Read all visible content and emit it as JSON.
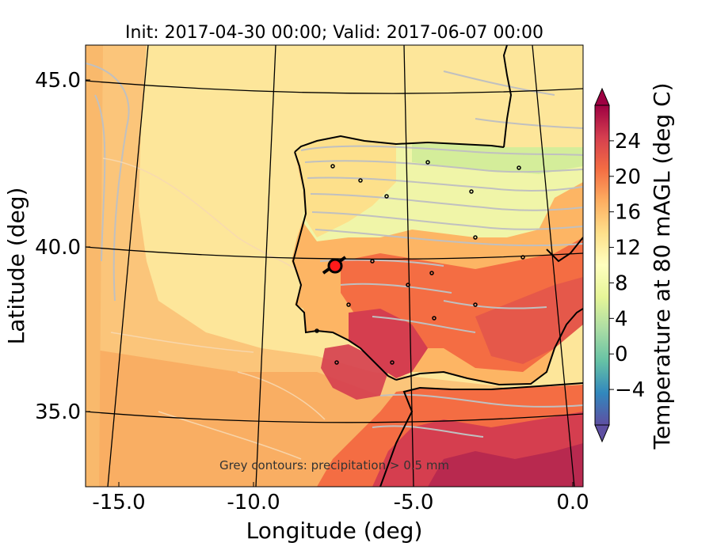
{
  "map": {
    "title": "Init: 2017-04-30 00:00; Valid: 2017-06-07 00:00",
    "xlabel": "Longitude (deg)",
    "ylabel": "Latitude (deg)",
    "x_ticks": [
      "-15.0",
      "-10.0",
      "-5.0",
      "0.0"
    ],
    "y_ticks": [
      "45.0",
      "40.0",
      "35.0"
    ],
    "annotation": "Grey contours: precipitation > 0.5 mm",
    "ocean_color": "#fde69a",
    "warm_sea_color": "#fbc57a",
    "coastline_color": "#000000",
    "graticule_color": "#000000",
    "precip_contour_color": "#c0c0c0"
  },
  "colorbar": {
    "label": "Temperature at 80 mAGL (deg C)",
    "ticks": [
      "−4",
      "0",
      "4",
      "8",
      "12",
      "16",
      "20",
      "24"
    ],
    "tick_values": [
      -4,
      0,
      4,
      8,
      12,
      16,
      20,
      24
    ],
    "range": [
      -8,
      28
    ],
    "colormap": "Spectral_r",
    "extend": "both"
  },
  "marker": {
    "fill": "#ff1a1a",
    "edge": "#000000",
    "lon": -7.6,
    "lat": 39.4
  }
}
